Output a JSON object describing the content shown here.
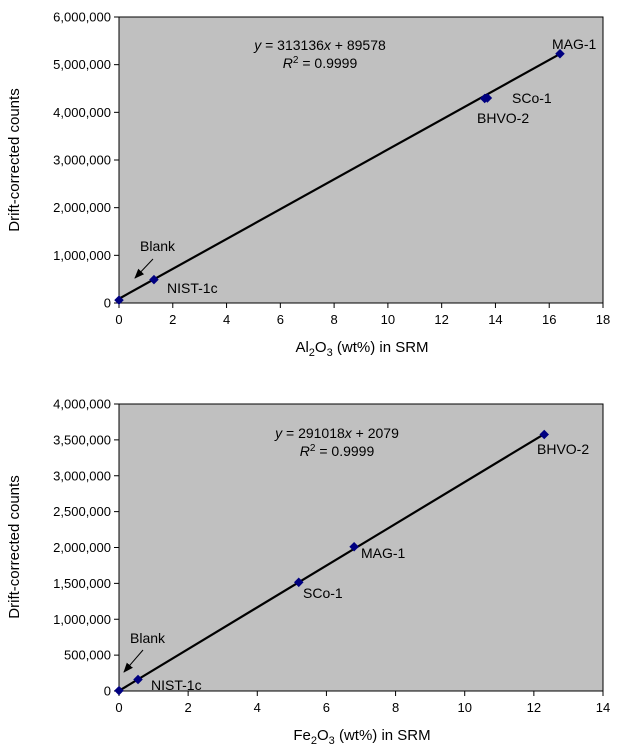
{
  "chart_data": [
    {
      "type": "scatter",
      "xlabel_parts": [
        "Al",
        "2",
        "O",
        "3",
        " (wt%) in SRM"
      ],
      "ylabel": "Drift-corrected counts",
      "xlim": [
        0,
        18
      ],
      "ylim": [
        0,
        6000000
      ],
      "x_ticks": [
        "0",
        "2",
        "4",
        "6",
        "8",
        "10",
        "12",
        "14",
        "16",
        "18"
      ],
      "y_ticks": [
        "0",
        "1,000,000",
        "2,000,000",
        "3,000,000",
        "4,000,000",
        "5,000,000",
        "6,000,000"
      ],
      "grid": false,
      "plot_background": "#c0c0c0",
      "point_color": "#000080",
      "equation": {
        "y_var": "y",
        "rhs_a": " = 313136",
        "x_var": "x",
        "rhs_b": " + 89578",
        "r_var": "R",
        "r_exp": "2",
        "r_val": " = 0.9999"
      },
      "fit": {
        "slope": 313136,
        "intercept": 89578
      },
      "points": [
        {
          "name": "Blank",
          "x": 0,
          "y": 60000
        },
        {
          "name": "NIST-1c",
          "x": 1.3,
          "y": 490000
        },
        {
          "name": "BHVO-2",
          "x": 13.6,
          "y": 4290000
        },
        {
          "name": "SCo-1",
          "x": 13.7,
          "y": 4300000
        },
        {
          "name": "MAG-1",
          "x": 16.4,
          "y": 5230000
        }
      ],
      "labels": [
        "MAG-1",
        "SCo-1",
        "BHVO-2",
        "Blank",
        "NIST-1c"
      ]
    },
    {
      "type": "scatter",
      "xlabel_parts": [
        "Fe",
        "2",
        "O",
        "3",
        " (wt%) in SRM"
      ],
      "ylabel": "Drift-corrected counts",
      "xlim": [
        0,
        14
      ],
      "ylim": [
        0,
        4000000
      ],
      "x_ticks": [
        "0",
        "2",
        "4",
        "6",
        "8",
        "10",
        "12",
        "14"
      ],
      "y_ticks": [
        "0",
        "500,000",
        "1,000,000",
        "1,500,000",
        "2,000,000",
        "2,500,000",
        "3,000,000",
        "3,500,000",
        "4,000,000"
      ],
      "grid": false,
      "plot_background": "#c0c0c0",
      "point_color": "#000080",
      "equation": {
        "y_var": "y",
        "rhs_a": " = 291018",
        "x_var": "x",
        "rhs_b": " + 2079",
        "r_var": "R",
        "r_exp": "2",
        "r_val": " = 0.9999"
      },
      "fit": {
        "slope": 291018,
        "intercept": 2079
      },
      "points": [
        {
          "name": "Blank",
          "x": 0,
          "y": 5000
        },
        {
          "name": "NIST-1c",
          "x": 0.55,
          "y": 160000
        },
        {
          "name": "SCo-1",
          "x": 5.2,
          "y": 1515000
        },
        {
          "name": "MAG-1",
          "x": 6.8,
          "y": 2010000
        },
        {
          "name": "BHVO-2",
          "x": 12.3,
          "y": 3575000
        }
      ],
      "labels": [
        "BHVO-2",
        "MAG-1",
        "SCo-1",
        "Blank",
        "NIST-1c"
      ]
    }
  ]
}
